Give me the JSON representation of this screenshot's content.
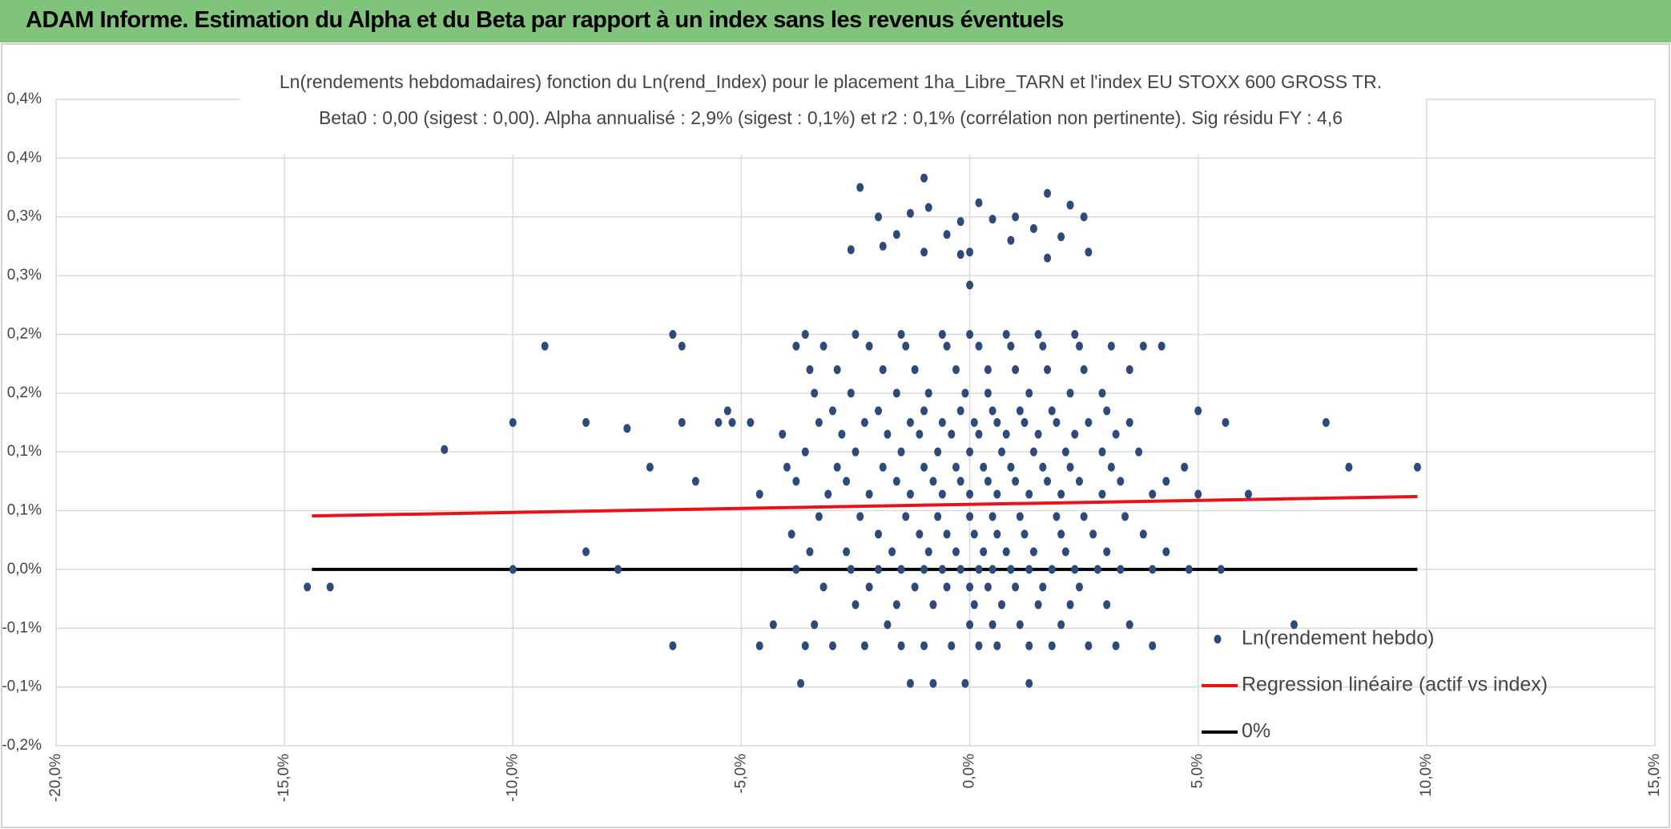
{
  "header": {
    "title": "ADAM Informe. Estimation du Alpha et du Beta par rapport à un index sans les revenus éventuels"
  },
  "chart_data": {
    "type": "scatter",
    "title": "Ln(rendements hebdomadaires) fonction du Ln(rend_Index) pour le placement 1ha_Libre_TARN et l'index EU STOXX 600 GROSS TR.",
    "subtitle": "Beta0 : 0,00 (sigest : 0,00). Alpha annualisé : 2,9% (sigest : 0,1%) et r2 : 0,1% (corrélation non pertinente). Sig résidu FY : 4,6",
    "xlim": [
      -20,
      15
    ],
    "xticks": [
      {
        "value": -20,
        "label": "-20,0%"
      },
      {
        "value": -15,
        "label": "-15,0%"
      },
      {
        "value": -10,
        "label": "-10,0%"
      },
      {
        "value": -5,
        "label": "-5,0%"
      },
      {
        "value": 0,
        "label": "0,0%"
      },
      {
        "value": 5,
        "label": "5,0%"
      },
      {
        "value": 10,
        "label": "10,0%"
      },
      {
        "value": 15,
        "label": "15,0%"
      }
    ],
    "ylim": [
      -0.15,
      0.4
    ],
    "yticks": [
      {
        "value": -0.15,
        "label": "-0,2%"
      },
      {
        "value": -0.1,
        "label": "-0,1%"
      },
      {
        "value": -0.05,
        "label": "-0,1%"
      },
      {
        "value": 0,
        "label": "0,0%"
      },
      {
        "value": 0.05,
        "label": "0,1%"
      },
      {
        "value": 0.1,
        "label": "0,1%"
      },
      {
        "value": 0.15,
        "label": "0,2%"
      },
      {
        "value": 0.2,
        "label": "0,2%"
      },
      {
        "value": 0.25,
        "label": "0,3%"
      },
      {
        "value": 0.3,
        "label": "0,3%"
      },
      {
        "value": 0.35,
        "label": "0,4%"
      },
      {
        "value": 0.4,
        "label": "0,4%"
      }
    ],
    "grid": true,
    "legend": "lower right",
    "series": [
      {
        "name": "Ln(rendement hebdo)",
        "type": "scatter",
        "color": "#2e4a7a",
        "x": [
          -3.8,
          -2.6,
          -2.0,
          -1.5,
          -1.0,
          -0.6,
          -0.2,
          0.2,
          0.5,
          0.9,
          1.3,
          1.8,
          2.3,
          2.8,
          3.3,
          4.0,
          4.8,
          5.5,
          -3.2,
          -2.2,
          -1.2,
          -0.5,
          0,
          0.4,
          1.0,
          1.6,
          2.4,
          -2.5,
          -1.6,
          -0.8,
          0.1,
          0.7,
          1.5,
          2.2,
          3.0,
          -4.3,
          -3.4,
          -1.8,
          0.0,
          0.5,
          1.1,
          2.0,
          3.5,
          -4.6,
          -3.6,
          -3.0,
          -2.3,
          -1.5,
          -1.0,
          -0.4,
          0.2,
          0.6,
          1.3,
          1.8,
          2.6,
          3.2,
          4.0,
          -3.7,
          -1.3,
          -0.8,
          -0.1,
          1.3,
          -3.5,
          -2.7,
          -1.7,
          -0.9,
          -0.3,
          0.3,
          0.8,
          1.4,
          2.1,
          3.0,
          4.3,
          -3.9,
          -2.0,
          -1.1,
          -0.5,
          0.1,
          0.6,
          1.2,
          2.0,
          2.7,
          3.8,
          -3.3,
          -2.4,
          -1.4,
          -0.7,
          0,
          0.5,
          1.1,
          1.9,
          2.5,
          3.4,
          -4.6,
          -3.1,
          -2.2,
          -1.3,
          -0.6,
          0,
          0.6,
          1.3,
          2.0,
          2.9,
          4.0,
          5.0,
          6.1,
          -6,
          -3.8,
          -2.7,
          -1.6,
          -0.8,
          -0.2,
          0.4,
          1.0,
          1.7,
          2.4,
          3.3,
          4.3,
          -7,
          -4.0,
          -2.9,
          -1.9,
          -1.0,
          -0.3,
          0.3,
          0.9,
          1.6,
          2.2,
          3.1,
          4.7,
          8.3,
          9.8,
          -3.6,
          -2.5,
          -1.5,
          -0.7,
          0,
          0.7,
          1.4,
          2.1,
          2.9,
          3.7,
          -4.1,
          -2.8,
          -1.8,
          -1.1,
          -0.4,
          0.2,
          0.8,
          1.5,
          2.3,
          3.2,
          -10,
          -8.4,
          -6.3,
          -5.5,
          -5.2,
          -4.8,
          -3.3,
          -2.3,
          -1.3,
          -0.6,
          0.1,
          0.6,
          1.2,
          1.9,
          2.6,
          3.5,
          5.6,
          7.8,
          -5.3,
          -3.0,
          -2.0,
          -1.0,
          -0.2,
          0.5,
          1.1,
          1.8,
          3.0,
          5.0,
          -3.4,
          -2.6,
          -1.6,
          -0.9,
          -0.1,
          0.4,
          1.3,
          2.2,
          2.9,
          -3.5,
          -2.9,
          -1.9,
          -1.2,
          -0.3,
          0.4,
          1.0,
          1.7,
          2.5,
          3.5,
          -9.3,
          -6.3,
          -3.8,
          -3.2,
          -2.2,
          -1.4,
          -0.5,
          0.2,
          0.9,
          1.6,
          2.4,
          3.1,
          3.8,
          4.2,
          -6.5,
          -3.6,
          -2.5,
          -1.5,
          -0.6,
          0.0,
          0.8,
          1.5,
          2.3,
          -14.5,
          -14,
          -11.5,
          -7.7,
          -10,
          -8.4,
          -7.5,
          -6.5,
          7.1,
          0,
          -1.0,
          -2.4,
          1.7,
          0.2,
          -0.9,
          -1.3,
          2.2,
          1.0,
          -2.0,
          0.5,
          -0.2,
          2.5,
          -1.6,
          1.4,
          -0.5,
          0.9,
          2.0,
          -2.6,
          -1.0,
          0.0,
          1.7,
          -0.2,
          -1.9,
          2.6
        ],
        "values": [
          0,
          0,
          0,
          0,
          0,
          0,
          0,
          0,
          0,
          0,
          0,
          0,
          0,
          0,
          0,
          0,
          0,
          0,
          -0.015,
          -0.015,
          -0.015,
          -0.015,
          -0.015,
          -0.015,
          -0.015,
          -0.015,
          -0.015,
          -0.03,
          -0.03,
          -0.03,
          -0.03,
          -0.03,
          -0.03,
          -0.03,
          -0.03,
          -0.047,
          -0.047,
          -0.047,
          -0.047,
          -0.047,
          -0.047,
          -0.047,
          -0.047,
          -0.065,
          -0.065,
          -0.065,
          -0.065,
          -0.065,
          -0.065,
          -0.065,
          -0.065,
          -0.065,
          -0.065,
          -0.065,
          -0.065,
          -0.065,
          -0.065,
          -0.097,
          -0.097,
          -0.097,
          -0.097,
          -0.097,
          0.015,
          0.015,
          0.015,
          0.015,
          0.015,
          0.015,
          0.015,
          0.015,
          0.015,
          0.015,
          0.015,
          0.03,
          0.03,
          0.03,
          0.03,
          0.03,
          0.03,
          0.03,
          0.03,
          0.03,
          0.03,
          0.045,
          0.045,
          0.045,
          0.045,
          0.045,
          0.045,
          0.045,
          0.045,
          0.045,
          0.045,
          0.064,
          0.064,
          0.064,
          0.064,
          0.064,
          0.064,
          0.064,
          0.064,
          0.064,
          0.064,
          0.064,
          0.064,
          0.064,
          0.075,
          0.075,
          0.075,
          0.075,
          0.075,
          0.075,
          0.075,
          0.075,
          0.075,
          0.075,
          0.075,
          0.075,
          0.087,
          0.087,
          0.087,
          0.087,
          0.087,
          0.087,
          0.087,
          0.087,
          0.087,
          0.087,
          0.087,
          0.087,
          0.087,
          0.087,
          0.1,
          0.1,
          0.1,
          0.1,
          0.1,
          0.1,
          0.1,
          0.1,
          0.1,
          0.1,
          0.115,
          0.115,
          0.115,
          0.115,
          0.115,
          0.115,
          0.115,
          0.115,
          0.115,
          0.115,
          0.125,
          0.125,
          0.125,
          0.125,
          0.125,
          0.125,
          0.125,
          0.125,
          0.125,
          0.125,
          0.125,
          0.125,
          0.125,
          0.125,
          0.125,
          0.125,
          0.125,
          0.125,
          0.135,
          0.135,
          0.135,
          0.135,
          0.135,
          0.135,
          0.135,
          0.135,
          0.135,
          0.135,
          0.15,
          0.15,
          0.15,
          0.15,
          0.15,
          0.15,
          0.15,
          0.15,
          0.15,
          0.17,
          0.17,
          0.17,
          0.17,
          0.17,
          0.17,
          0.17,
          0.17,
          0.17,
          0.17,
          0.19,
          0.19,
          0.19,
          0.19,
          0.19,
          0.19,
          0.19,
          0.19,
          0.19,
          0.19,
          0.19,
          0.19,
          0.19,
          0.19,
          0.2,
          0.2,
          0.2,
          0.2,
          0.2,
          0.2,
          0.2,
          0.2,
          0.2,
          -0.015,
          -0.015,
          0.102,
          0,
          0,
          0.015,
          0.12,
          -0.065,
          -0.047,
          0.242,
          0.333,
          0.325,
          0.32,
          0.312,
          0.308,
          0.303,
          0.31,
          0.3,
          0.3,
          0.298,
          0.296,
          0.3,
          0.285,
          0.29,
          0.285,
          0.28,
          0.283,
          0.272,
          0.27,
          0.27,
          0.265,
          0.268,
          0.275,
          0.27
        ]
      },
      {
        "name": "Regression linéaire (actif vs index)",
        "type": "line",
        "color": "#e8121a",
        "x": [
          -14.4,
          9.8
        ],
        "values": [
          0.0455,
          0.062
        ]
      },
      {
        "name": "0%",
        "type": "line",
        "color": "#000000",
        "x": [
          -14.4,
          9.8
        ],
        "values": [
          0,
          0
        ]
      }
    ]
  }
}
